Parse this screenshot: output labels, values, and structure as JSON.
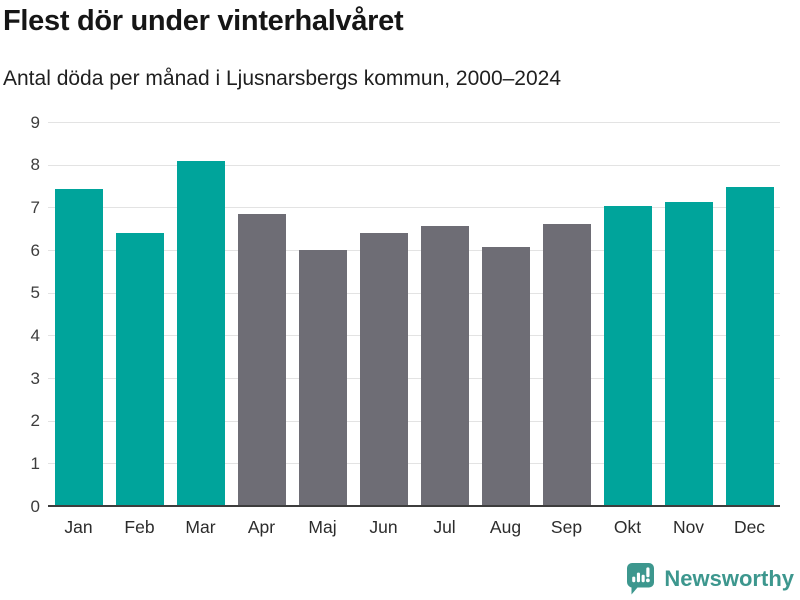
{
  "header": {
    "title": "Flest dör under vinterhalvåret",
    "subtitle": "Antal döda per månad i Ljusnarsbergs kommun, 2000–2024"
  },
  "chart_data": {
    "type": "bar",
    "title": "Flest dör under vinterhalvåret",
    "subtitle": "Antal döda per månad i Ljusnarsbergs kommun, 2000–2024",
    "categories": [
      "Jan",
      "Feb",
      "Mar",
      "Apr",
      "Maj",
      "Jun",
      "Jul",
      "Aug",
      "Sep",
      "Okt",
      "Nov",
      "Dec"
    ],
    "values": [
      7.44,
      6.4,
      8.08,
      6.84,
      6.0,
      6.4,
      6.56,
      6.08,
      6.6,
      7.04,
      7.12,
      7.48
    ],
    "bar_colors": [
      "highlight",
      "highlight",
      "highlight",
      "muted",
      "muted",
      "muted",
      "muted",
      "muted",
      "muted",
      "highlight",
      "highlight",
      "highlight"
    ],
    "xlabel": "",
    "ylabel": "",
    "ylim": [
      0,
      9
    ],
    "yticks": [
      0,
      1,
      2,
      3,
      4,
      5,
      6,
      7,
      8,
      9
    ],
    "grid": true,
    "legend": "none",
    "colors": {
      "highlight": "#00a49b",
      "muted": "#6e6d75",
      "gridline": "#e3e3e3",
      "axis_line": "#3d3d3d",
      "tick_label": "#3d3d3d",
      "xtick_label": "#2c2c2c"
    }
  },
  "branding": {
    "logo_text": "Newsworthy",
    "logo_color": "#3d978e"
  }
}
